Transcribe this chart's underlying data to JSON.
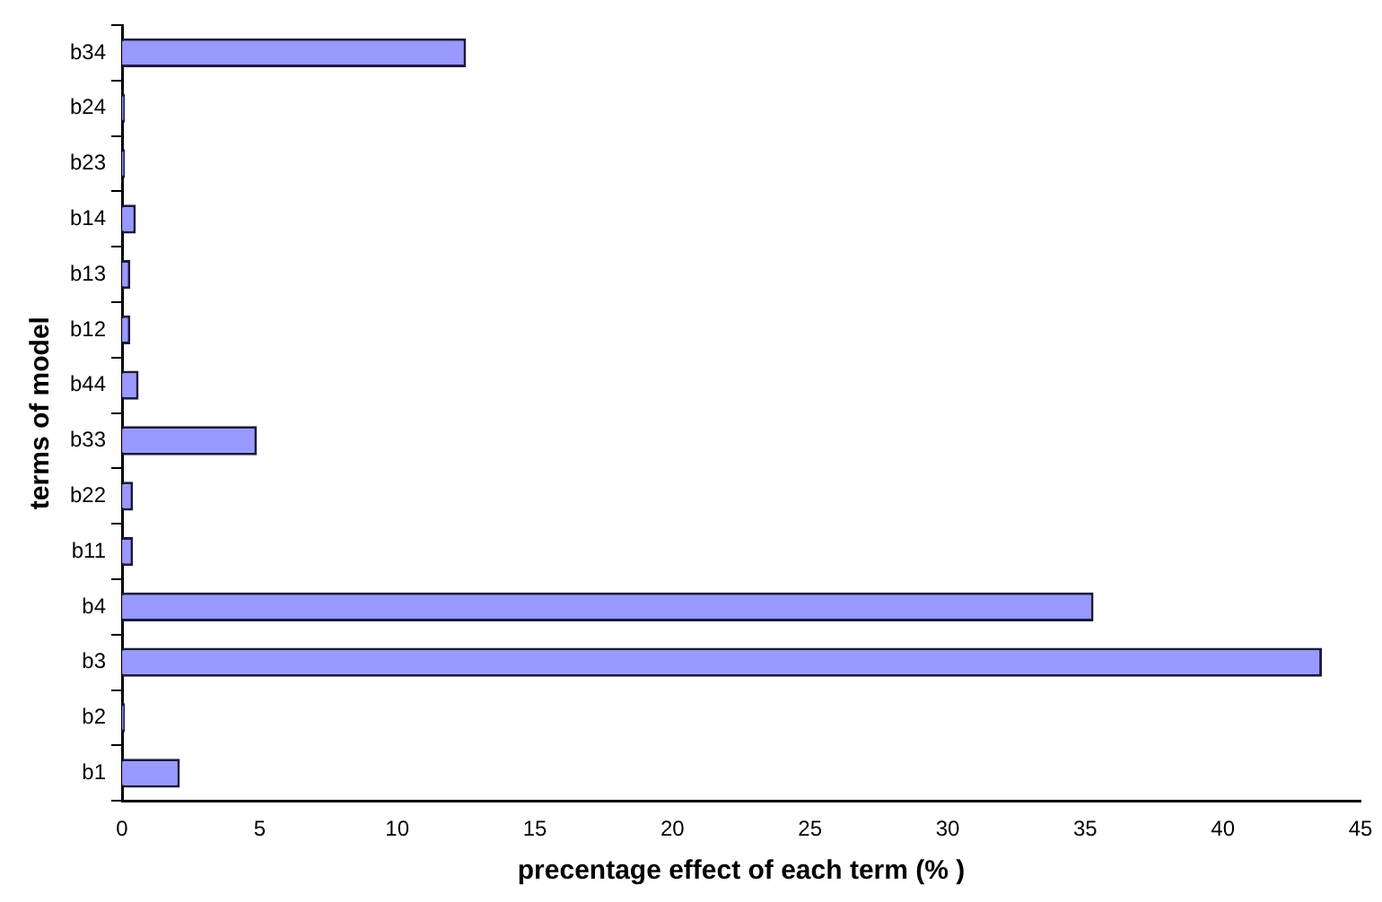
{
  "chart_data": {
    "type": "bar",
    "orientation": "horizontal",
    "xlabel": "precentage effect of each term (% )",
    "ylabel": "terms of model",
    "categories": [
      "b34",
      "b24",
      "b23",
      "b14",
      "b13",
      "b12",
      "b44",
      "b33",
      "b22",
      "b11",
      "b4",
      "b3",
      "b2",
      "b1"
    ],
    "values": [
      12.5,
      0.1,
      0.1,
      0.5,
      0.3,
      0.3,
      0.6,
      4.9,
      0.4,
      0.4,
      35.3,
      43.6,
      0.1,
      2.1
    ],
    "color": "#9999ff",
    "xlim": [
      0,
      45
    ],
    "xticks": [
      0,
      5,
      10,
      15,
      20,
      25,
      30,
      35,
      40,
      45
    ],
    "grid": false,
    "legend": false
  }
}
